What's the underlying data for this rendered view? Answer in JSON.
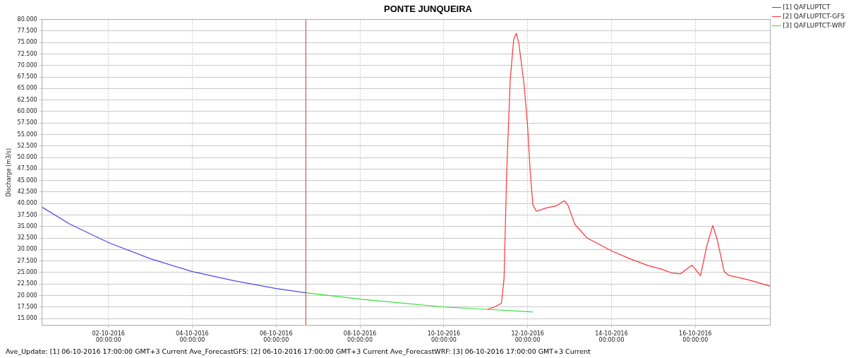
{
  "chart_data": {
    "type": "line",
    "title": "PONTE JUNQUEIRA",
    "ylabel": "Discharge (m3/s)",
    "annotations": [
      "Ave_Update: [1] 06-10-2016 17:00:00 GMT+3 Current Ave_ForecastGFS: [2] 06-10-2016 17:00:00 GMT+3 Current Ave_ForecastWRF: [3] 06-10-2016 17:00:00 GMT+3 Current"
    ],
    "xlim": [
      "2016-09-30T10:00",
      "2016-10-17T19:00"
    ],
    "xticks": [
      {
        "value": "2016-10-02T00:00",
        "label": "02-10-2016 00:00:00"
      },
      {
        "value": "2016-10-04T00:00",
        "label": "04-10-2016 00:00:00"
      },
      {
        "value": "2016-10-06T00:00",
        "label": "06-10-2016 00:00:00"
      },
      {
        "value": "2016-10-08T00:00",
        "label": "08-10-2016 00:00:00"
      },
      {
        "value": "2016-10-10T00:00",
        "label": "10-10-2016 00:00:00"
      },
      {
        "value": "2016-10-12T00:00",
        "label": "12-10-2016 00:00:00"
      },
      {
        "value": "2016-10-14T00:00",
        "label": "14-10-2016 00:00:00"
      },
      {
        "value": "2016-10-16T00:00",
        "label": "16-10-2016 00:00:00"
      }
    ],
    "ylim": [
      13.5,
      80
    ],
    "yticks": [
      {
        "value": 15,
        "label": "15.000"
      },
      {
        "value": 17.5,
        "label": "17.500"
      },
      {
        "value": 20,
        "label": "20.000"
      },
      {
        "value": 22.5,
        "label": "22.500"
      },
      {
        "value": 25,
        "label": "25.000"
      },
      {
        "value": 27.5,
        "label": "27.500"
      },
      {
        "value": 30,
        "label": "30.000"
      },
      {
        "value": 32.5,
        "label": "32.500"
      },
      {
        "value": 35,
        "label": "35.000"
      },
      {
        "value": 37.5,
        "label": "37.500"
      },
      {
        "value": 40,
        "label": "40.000"
      },
      {
        "value": 42.5,
        "label": "42.500"
      },
      {
        "value": 45,
        "label": "45.000"
      },
      {
        "value": 47.5,
        "label": "47.500"
      },
      {
        "value": 50,
        "label": "50.000"
      },
      {
        "value": 52.5,
        "label": "52.500"
      },
      {
        "value": 55,
        "label": "55.000"
      },
      {
        "value": 57.5,
        "label": "57.500"
      },
      {
        "value": 60,
        "label": "60.000"
      },
      {
        "value": 62.5,
        "label": "62.500"
      },
      {
        "value": 65,
        "label": "65.000"
      },
      {
        "value": 67.5,
        "label": "67.500"
      },
      {
        "value": 70,
        "label": "70.000"
      },
      {
        "value": 72.5,
        "label": "72.500"
      },
      {
        "value": 75,
        "label": "75.000"
      },
      {
        "value": 77.5,
        "label": "77.500"
      },
      {
        "value": 80,
        "label": "80.000"
      }
    ],
    "grid": true,
    "legend": "top right",
    "marker": "none",
    "line_style": "solid",
    "ref_lines": [
      {
        "axis": "x",
        "value": "2016-10-06T17:00",
        "color": "#cc3333"
      }
    ],
    "series": [
      {
        "name": "[1] QAFLUPTCT",
        "color": "#4a4ae8",
        "x": [
          "2016-09-30T10:00",
          "2016-10-01T02:00",
          "2016-10-02T00:00",
          "2016-10-03T00:00",
          "2016-10-04T00:00",
          "2016-10-05T00:00",
          "2016-10-06T00:00",
          "2016-10-06T17:00"
        ],
        "values": [
          39.2,
          35.5,
          31.5,
          28.0,
          25.2,
          23.2,
          21.5,
          20.6
        ]
      },
      {
        "name": "[2] QAFLUPTCT-GFS",
        "color": "#ff3333",
        "x": [
          "2016-10-11T01:00",
          "2016-10-11T05:00",
          "2016-10-11T09:00",
          "2016-10-11T10:30",
          "2016-10-11T12:00",
          "2016-10-11T14:00",
          "2016-10-11T16:00",
          "2016-10-11T17:30",
          "2016-10-11T19:00",
          "2016-10-11T22:00",
          "2016-10-12T00:00",
          "2016-10-12T01:30",
          "2016-10-12T03:00",
          "2016-10-12T05:00",
          "2016-10-12T10:30",
          "2016-10-12T16:30",
          "2016-10-12T21:00",
          "2016-10-12T23:00",
          "2016-10-13T03:00",
          "2016-10-13T10:00",
          "2016-10-13T15:00",
          "2016-10-14T00:00",
          "2016-10-14T10:30",
          "2016-10-14T21:00",
          "2016-10-15T04:00",
          "2016-10-15T10:30",
          "2016-10-15T15:30",
          "2016-10-15T22:00",
          "2016-10-16T03:00",
          "2016-10-16T06:30",
          "2016-10-16T10:00",
          "2016-10-16T12:30",
          "2016-10-16T16:30",
          "2016-10-16T19:00",
          "2016-10-17T06:30",
          "2016-10-17T19:00"
        ],
        "values": [
          17.0,
          17.5,
          18.3,
          23.7,
          46.7,
          66.7,
          75.7,
          77.0,
          74.7,
          65.7,
          56.7,
          46.7,
          39.7,
          38.3,
          39.0,
          39.5,
          40.6,
          39.7,
          35.5,
          32.5,
          31.5,
          29.7,
          28.0,
          26.5,
          25.8,
          24.9,
          24.7,
          26.6,
          24.3,
          30.7,
          35.2,
          32.2,
          25.2,
          24.4,
          23.4,
          22.0
        ]
      },
      {
        "name": "[3] QAFLUPTCT-WRF",
        "color": "#33dd33",
        "x": [
          "2016-10-06T17:00",
          "2016-10-08T00:00",
          "2016-10-10T00:00",
          "2016-10-11T01:00",
          "2016-10-12T03:00"
        ],
        "values": [
          20.6,
          19.2,
          17.5,
          17.0,
          16.4
        ]
      }
    ]
  }
}
